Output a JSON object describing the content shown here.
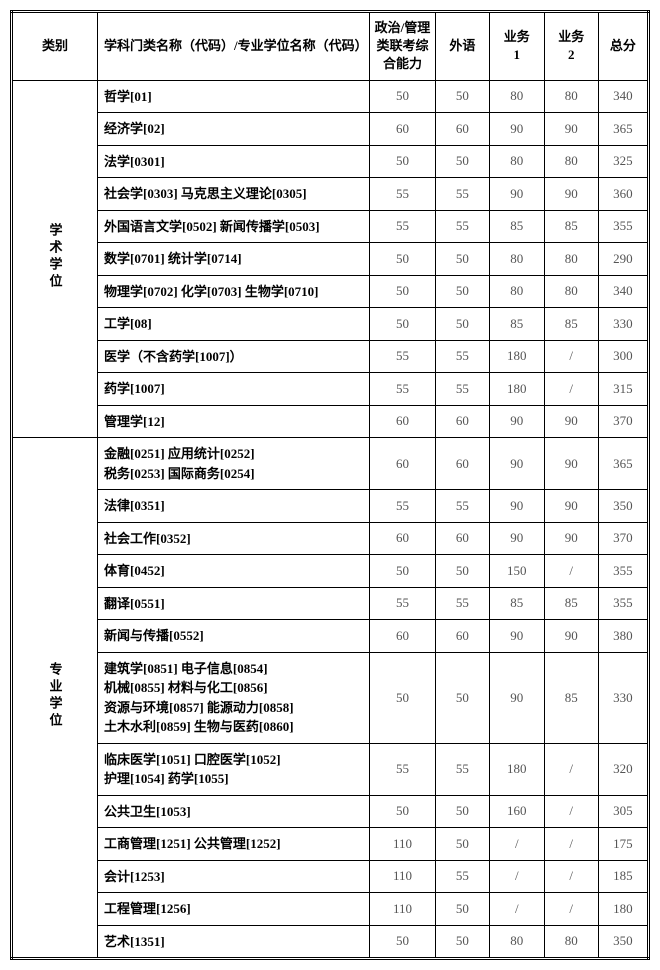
{
  "headers": {
    "category": "类别",
    "subject": "学科门类名称（代码）/专业学位名称（代码）",
    "politics": "政治/管理类联考综合能力",
    "foreign": "外语",
    "biz1_a": "业务",
    "biz1_b": "1",
    "biz2_a": "业务",
    "biz2_b": "2",
    "total": "总分"
  },
  "groups": [
    {
      "category": "学术学位",
      "rows": [
        {
          "subject": "哲学[01]",
          "c1": "50",
          "c2": "50",
          "c3": "80",
          "c4": "80",
          "c5": "340"
        },
        {
          "subject": "经济学[02]",
          "c1": "60",
          "c2": "60",
          "c3": "90",
          "c4": "90",
          "c5": "365"
        },
        {
          "subject": "法学[0301]",
          "c1": "50",
          "c2": "50",
          "c3": "80",
          "c4": "80",
          "c5": "325"
        },
        {
          "subject": "社会学[0303] 马克思主义理论[0305]",
          "c1": "55",
          "c2": "55",
          "c3": "90",
          "c4": "90",
          "c5": "360"
        },
        {
          "subject": "外国语言文学[0502] 新闻传播学[0503]",
          "c1": "55",
          "c2": "55",
          "c3": "85",
          "c4": "85",
          "c5": "355"
        },
        {
          "subject": "数学[0701] 统计学[0714]",
          "c1": "50",
          "c2": "50",
          "c3": "80",
          "c4": "80",
          "c5": "290"
        },
        {
          "subject": "物理学[0702] 化学[0703] 生物学[0710]",
          "c1": "50",
          "c2": "50",
          "c3": "80",
          "c4": "80",
          "c5": "340"
        },
        {
          "subject": "工学[08]",
          "c1": "50",
          "c2": "50",
          "c3": "85",
          "c4": "85",
          "c5": "330"
        },
        {
          "subject": "医学（不含药学[1007]）",
          "c1": "55",
          "c2": "55",
          "c3": "180",
          "c4": "/",
          "c5": "300"
        },
        {
          "subject": "药学[1007]",
          "c1": "55",
          "c2": "55",
          "c3": "180",
          "c4": "/",
          "c5": "315"
        },
        {
          "subject": "管理学[12]",
          "c1": "60",
          "c2": "60",
          "c3": "90",
          "c4": "90",
          "c5": "370"
        }
      ]
    },
    {
      "category": "专业学位",
      "rows": [
        {
          "subject": "金融[0251] 应用统计[0252]\n税务[0253] 国际商务[0254]",
          "c1": "60",
          "c2": "60",
          "c3": "90",
          "c4": "90",
          "c5": "365"
        },
        {
          "subject": "法律[0351]",
          "c1": "55",
          "c2": "55",
          "c3": "90",
          "c4": "90",
          "c5": "350"
        },
        {
          "subject": "社会工作[0352]",
          "c1": "60",
          "c2": "60",
          "c3": "90",
          "c4": "90",
          "c5": "370"
        },
        {
          "subject": "体育[0452]",
          "c1": "50",
          "c2": "50",
          "c3": "150",
          "c4": "/",
          "c5": "355"
        },
        {
          "subject": "翻译[0551]",
          "c1": "55",
          "c2": "55",
          "c3": "85",
          "c4": "85",
          "c5": "355"
        },
        {
          "subject": "新闻与传播[0552]",
          "c1": "60",
          "c2": "60",
          "c3": "90",
          "c4": "90",
          "c5": "380"
        },
        {
          "subject": "建筑学[0851] 电子信息[0854]\n机械[0855] 材料与化工[0856]\n资源与环境[0857] 能源动力[0858]\n土木水利[0859] 生物与医药[0860]",
          "c1": "50",
          "c2": "50",
          "c3": "90",
          "c4": "85",
          "c5": "330"
        },
        {
          "subject": "临床医学[1051] 口腔医学[1052]\n护理[1054] 药学[1055]",
          "c1": "55",
          "c2": "55",
          "c3": "180",
          "c4": "/",
          "c5": "320"
        },
        {
          "subject": "公共卫生[1053]",
          "c1": "50",
          "c2": "50",
          "c3": "160",
          "c4": "/",
          "c5": "305"
        },
        {
          "subject": "工商管理[1251] 公共管理[1252]",
          "c1": "110",
          "c2": "50",
          "c3": "/",
          "c4": "/",
          "c5": "175"
        },
        {
          "subject": "会计[1253]",
          "c1": "110",
          "c2": "55",
          "c3": "/",
          "c4": "/",
          "c5": "185"
        },
        {
          "subject": "工程管理[1256]",
          "c1": "110",
          "c2": "50",
          "c3": "/",
          "c4": "/",
          "c5": "180"
        },
        {
          "subject": "艺术[1351]",
          "c1": "50",
          "c2": "50",
          "c3": "80",
          "c4": "80",
          "c5": "350"
        }
      ]
    }
  ],
  "styling": {
    "border_color": "#000000",
    "text_color": "#000000",
    "score_color": "#555555",
    "background": "#ffffff",
    "font_family": "SimSun",
    "header_fontsize": 13,
    "cell_fontsize": 13,
    "outer_border": "double 3px",
    "inner_border": "solid 1px"
  }
}
